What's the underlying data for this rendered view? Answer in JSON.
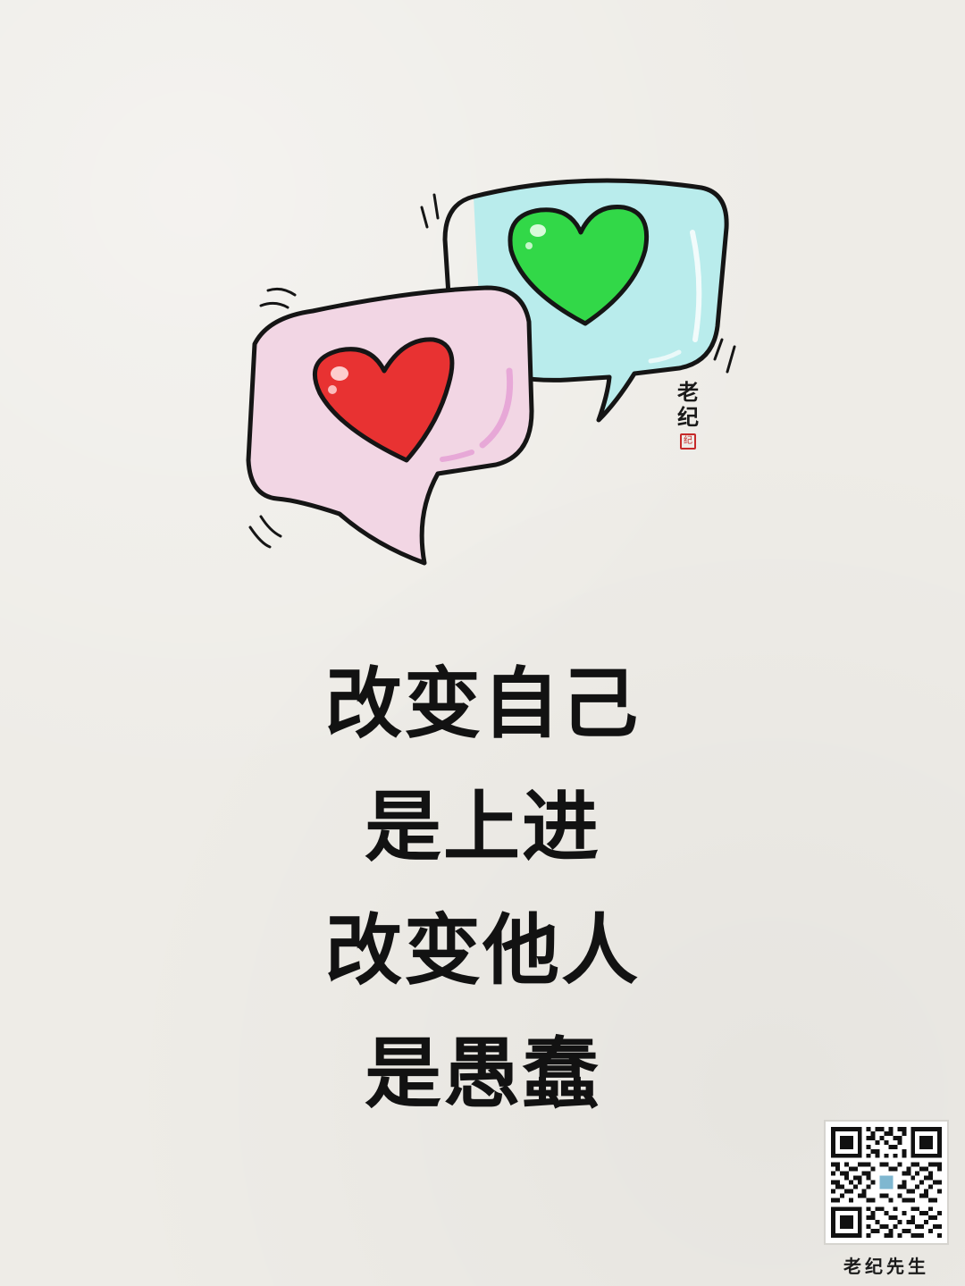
{
  "quote": {
    "lines": [
      "改变自己",
      "是上进",
      "改变他人",
      "是愚蠢"
    ]
  },
  "signature": {
    "chars": [
      "老",
      "纪"
    ],
    "seal": "纪"
  },
  "qr": {
    "caption": "老纪先生"
  },
  "illustration": {
    "icons": [
      "pink-speech-bubble-icon",
      "red-heart-icon",
      "teal-speech-bubble-icon",
      "green-heart-icon"
    ],
    "colors": {
      "pink_bubble": "#f2d6e4",
      "teal_bubble": "#b9ecec",
      "red_heart": "#e83232",
      "green_heart": "#32d848",
      "outline": "#151515",
      "seal": "#c62a2a"
    }
  }
}
